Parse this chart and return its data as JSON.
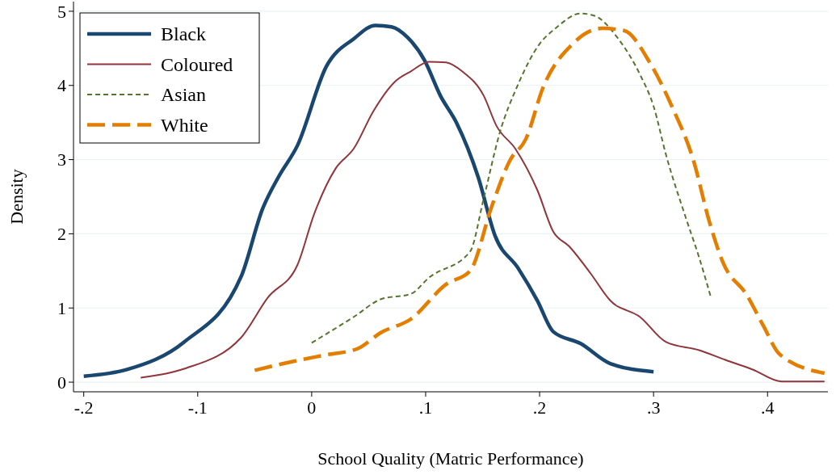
{
  "chart_data": {
    "type": "line",
    "xlabel": "School Quality (Matric Performance)",
    "ylabel": "Density",
    "xlim": [
      -0.209,
      0.453
    ],
    "ylim": [
      -0.13,
      5.13
    ],
    "xticks": [
      {
        "value": -0.2,
        "label": "-.2"
      },
      {
        "value": -0.1,
        "label": "-.1"
      },
      0,
      {
        "value": 0.1,
        "label": ".1"
      },
      {
        "value": 0.2,
        "label": ".2"
      },
      {
        "value": 0.3,
        "label": ".3"
      },
      {
        "value": 0.4,
        "label": ".4"
      }
    ],
    "yticks": [
      0,
      1,
      2,
      3,
      4,
      5
    ],
    "grid": "y",
    "legend": "top left",
    "series": [
      {
        "name": "Black",
        "color": "#1a476f",
        "line_style": "solid",
        "x": [
          -0.2,
          -0.162,
          -0.112,
          -0.062,
          -0.043,
          -0.029,
          -0.0125,
          0.013,
          0.037,
          0.056,
          0.07,
          0.084,
          0.099,
          0.113,
          0.127,
          0.146,
          0.161,
          0.181,
          0.198,
          0.212,
          0.236,
          0.262,
          0.3
        ],
        "values": [
          0.08,
          0.17,
          0.54,
          1.42,
          2.34,
          2.77,
          3.19,
          4.26,
          4.63,
          4.81,
          4.79,
          4.65,
          4.34,
          3.86,
          3.5,
          2.77,
          1.97,
          1.54,
          1.1,
          0.68,
          0.52,
          0.25,
          0.14
        ]
      },
      {
        "name": "Coloured",
        "color": "#90353b",
        "line_style": "solid",
        "x": [
          -0.15,
          -0.112,
          -0.062,
          -0.0385,
          -0.0125,
          0.002,
          0.021,
          0.037,
          0.054,
          0.073,
          0.087,
          0.103,
          0.118,
          0.132,
          0.151,
          0.162,
          0.179,
          0.198,
          0.212,
          0.226,
          0.245,
          0.262,
          0.288,
          0.311,
          0.34,
          0.363,
          0.387,
          0.412,
          0.45
        ],
        "values": [
          0.06,
          0.18,
          0.6,
          1.14,
          1.58,
          2.26,
          2.88,
          3.15,
          3.65,
          4.05,
          4.19,
          4.32,
          4.31,
          4.19,
          3.86,
          3.46,
          3.14,
          2.59,
          2.03,
          1.83,
          1.46,
          1.1,
          0.88,
          0.54,
          0.43,
          0.3,
          0.17,
          0.01,
          0.01
        ]
      },
      {
        "name": "Asian",
        "color": "#55752f",
        "line_style": "dotted",
        "x": [
          0,
          0.037,
          0.061,
          0.087,
          0.103,
          0.139,
          0.151,
          0.165,
          0.181,
          0.2,
          0.214,
          0.236,
          0.248,
          0.269,
          0.288,
          0.3,
          0.311,
          0.328,
          0.34,
          0.35
        ],
        "values": [
          0.53,
          0.88,
          1.12,
          1.19,
          1.41,
          1.76,
          2.48,
          3.36,
          4.01,
          4.56,
          4.77,
          4.97,
          4.94,
          4.63,
          4.15,
          3.72,
          3.06,
          2.23,
          1.68,
          1.16
        ]
      },
      {
        "name": "White",
        "color": "#e37e00",
        "line_style": "dashed",
        "x": [
          -0.05,
          -0.01,
          0.0135,
          0.04,
          0.061,
          0.087,
          0.118,
          0.139,
          0.158,
          0.174,
          0.188,
          0.203,
          0.229,
          0.255,
          0.274,
          0.297,
          0.316,
          0.335,
          0.349,
          0.361,
          0.382,
          0.396,
          0.411,
          0.45
        ],
        "values": [
          0.16,
          0.3,
          0.37,
          0.45,
          0.67,
          0.85,
          1.32,
          1.5,
          2.37,
          2.99,
          3.28,
          3.97,
          4.56,
          4.77,
          4.74,
          4.3,
          3.72,
          2.99,
          2.16,
          1.61,
          1.17,
          0.77,
          0.37,
          0.12
        ]
      }
    ]
  }
}
